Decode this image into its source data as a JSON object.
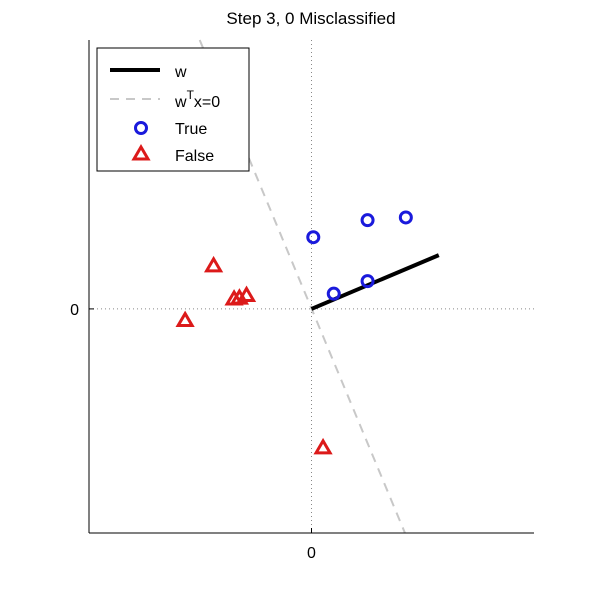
{
  "chart_data": {
    "type": "scatter",
    "title": "Step 3, 0 Misclassified",
    "xlabel": "",
    "ylabel": "",
    "xlim": [
      -2.5,
      2.5
    ],
    "ylim": [
      -2.5,
      3.0
    ],
    "x_ticks": [
      {
        "value": 0,
        "label": "0"
      }
    ],
    "y_ticks": [
      {
        "value": 0,
        "label": "0"
      }
    ],
    "grid": false,
    "zero_lines": true,
    "legend_position": "top-left",
    "legend": {
      "w": "w",
      "boundary_prefix": "w",
      "boundary_sup": "T",
      "boundary_suffix": "x=0",
      "true": "True",
      "false": "False"
    },
    "weight_vector": {
      "x": [
        0,
        1.43
      ],
      "y": [
        0,
        0.6
      ],
      "color": "#000000"
    },
    "decision_boundary": {
      "x": [
        -1.34,
        1.05
      ],
      "y": [
        3.2,
        -2.5
      ],
      "color": "#c8c8c8"
    },
    "series": [
      {
        "name": "True",
        "marker": "circle",
        "color": "#1a1adc",
        "points": [
          {
            "x": 0.02,
            "y": 0.8
          },
          {
            "x": 0.63,
            "y": 0.99
          },
          {
            "x": 1.06,
            "y": 1.02
          },
          {
            "x": 0.25,
            "y": 0.17
          },
          {
            "x": 0.63,
            "y": 0.31
          }
        ]
      },
      {
        "name": "False",
        "marker": "triangle",
        "color": "#dc1a1a",
        "points": [
          {
            "x": -1.1,
            "y": 0.48
          },
          {
            "x": -0.73,
            "y": 0.15
          },
          {
            "x": -0.81,
            "y": 0.12
          },
          {
            "x": -0.87,
            "y": 0.11
          },
          {
            "x": -1.42,
            "y": -0.13
          },
          {
            "x": 0.13,
            "y": -1.55
          }
        ]
      }
    ]
  }
}
